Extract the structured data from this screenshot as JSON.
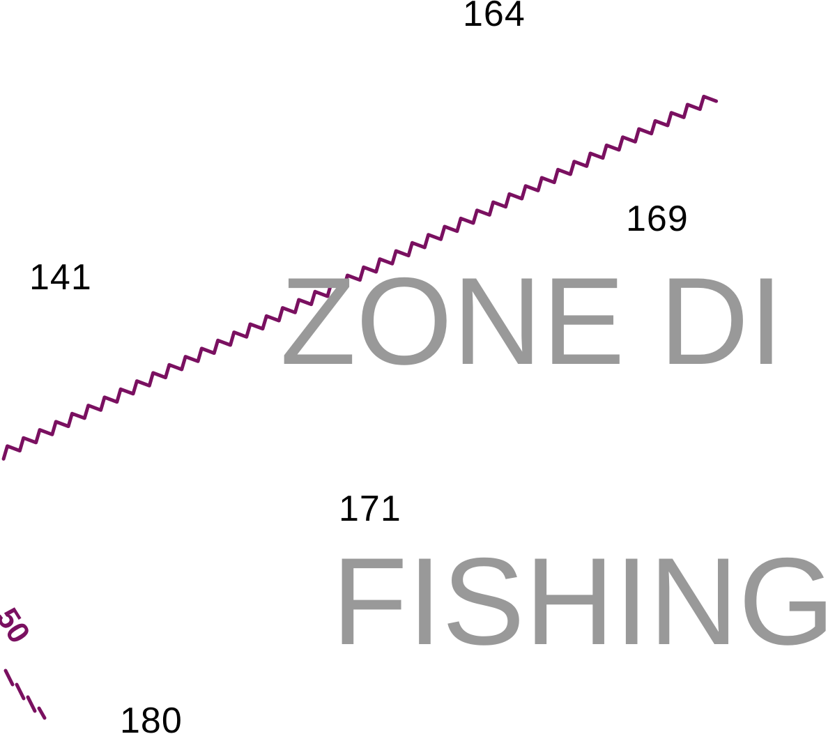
{
  "colors": {
    "background": "#ffffff",
    "sounding_text": "#000000",
    "area_label_text": "#999999",
    "boundary_line": "#7a1060",
    "contour": "#7a1060"
  },
  "soundings": {
    "s164": "164",
    "s169": "169",
    "s141": "141",
    "s171": "171",
    "s180": "180"
  },
  "area_labels": {
    "zone": "ZONE DI",
    "fishing": "FISHING"
  },
  "contour": {
    "label": "50"
  },
  "features": {
    "boundary": "restricted-area-boundary (zigzag)",
    "depth_contour": "dashed depth contour"
  }
}
